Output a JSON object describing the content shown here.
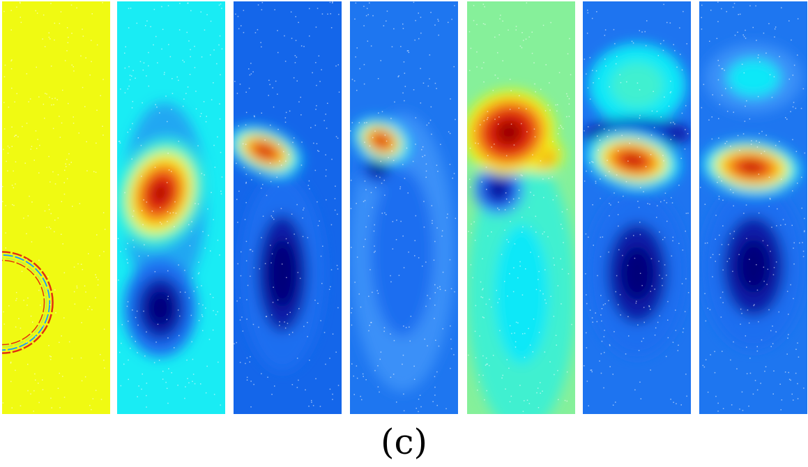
{
  "figure": {
    "caption": "(c)",
    "panel_count": 7
  }
}
